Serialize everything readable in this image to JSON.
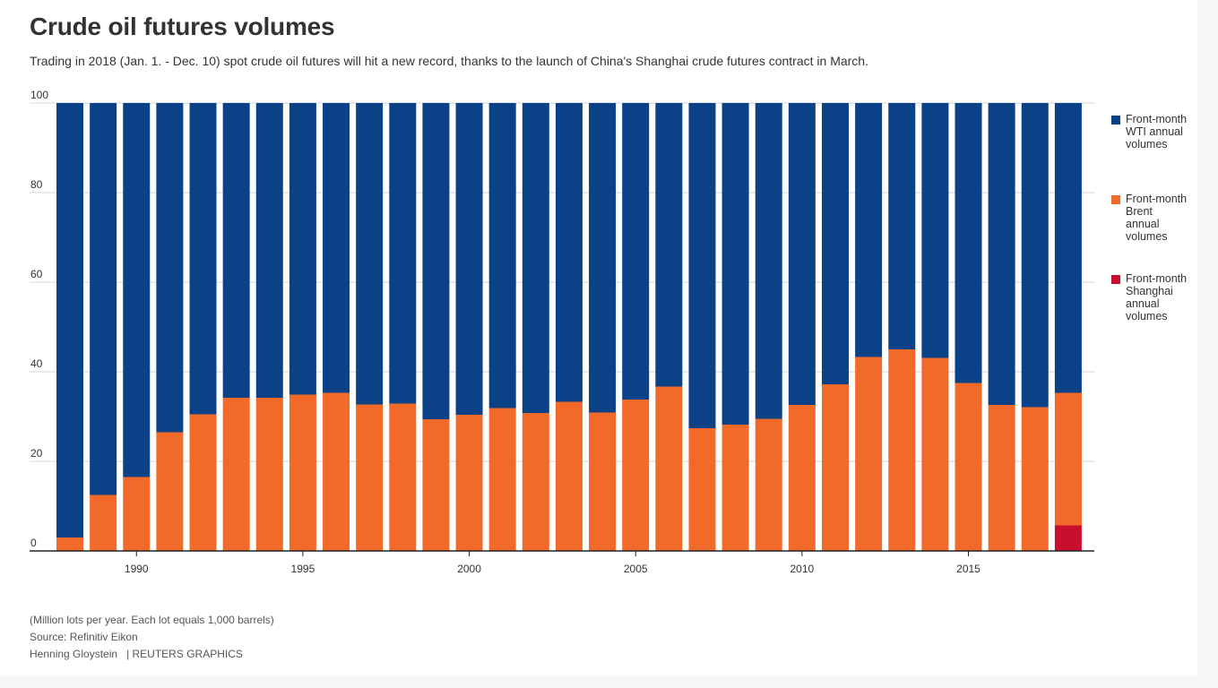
{
  "header": {
    "title": "Crude oil futures volumes",
    "subtitle": "Trading in 2018 (Jan. 1. - Dec. 10) spot crude oil futures will hit a new record, thanks to the launch of China's Shanghai crude futures contract in March."
  },
  "footer": {
    "note": "(Million lots per year. Each lot equals 1,000 barrels)",
    "source": "Source: Refinitiv Eikon",
    "author": "Henning Gloystein",
    "agency": "| REUTERS GRAPHICS"
  },
  "colors": {
    "wti": "#0b4187",
    "brent": "#f26a2a",
    "shanghai": "#c8102e",
    "grid": "#d6d6d6",
    "axis": "#222222"
  },
  "chart_data": {
    "type": "bar",
    "stacked": true,
    "x": [
      1988,
      1989,
      1990,
      1991,
      1992,
      1993,
      1994,
      1995,
      1996,
      1997,
      1998,
      1999,
      2000,
      2001,
      2002,
      2003,
      2004,
      2005,
      2006,
      2007,
      2008,
      2009,
      2010,
      2011,
      2012,
      2013,
      2014,
      2015,
      2016,
      2017,
      2018
    ],
    "xticks": [
      1990,
      1995,
      2000,
      2005,
      2010,
      2015
    ],
    "ylim": [
      0,
      100
    ],
    "yticks": [
      0,
      20,
      40,
      60,
      80,
      100
    ],
    "grid": true,
    "legend_position": "right",
    "series": [
      {
        "name": "Front-month Shanghai annual volumes",
        "color": "#c8102e",
        "values": [
          0,
          0,
          0,
          0,
          0,
          0,
          0,
          0,
          0,
          0,
          0,
          0,
          0,
          0,
          0,
          0,
          0,
          0,
          0,
          0,
          0,
          0,
          0,
          0,
          0,
          0,
          0,
          0,
          0,
          0,
          5.7
        ]
      },
      {
        "name": "Front-month Brent annual volumes",
        "color": "#f26a2a",
        "values": [
          3,
          12.5,
          16.5,
          26.5,
          30.5,
          34.2,
          34.2,
          34.9,
          35.3,
          32.7,
          32.9,
          29.4,
          30.4,
          31.9,
          30.8,
          33.3,
          30.9,
          33.8,
          36.7,
          27.4,
          28.2,
          29.5,
          32.6,
          37.2,
          43.3,
          45.0,
          43.1,
          37.5,
          32.6,
          32.1,
          29.6
        ]
      },
      {
        "name": "Front-month WTI annual volumes",
        "color": "#0b4187",
        "values": [
          97,
          87.5,
          83.5,
          73.5,
          69.5,
          65.8,
          65.8,
          65.1,
          64.7,
          67.3,
          67.1,
          70.6,
          69.6,
          68.1,
          69.2,
          66.7,
          69.1,
          66.2,
          63.3,
          72.6,
          71.8,
          70.5,
          67.4,
          62.8,
          56.7,
          55.0,
          56.9,
          62.5,
          67.4,
          67.9,
          64.7
        ]
      }
    ],
    "legend": [
      {
        "label": "Front-month WTI annual volumes",
        "color": "#0b4187"
      },
      {
        "label": "Front-month Brent annual volumes",
        "color": "#f26a2a"
      },
      {
        "label": "Front-month Shanghai annual volumes",
        "color": "#c8102e"
      }
    ]
  }
}
